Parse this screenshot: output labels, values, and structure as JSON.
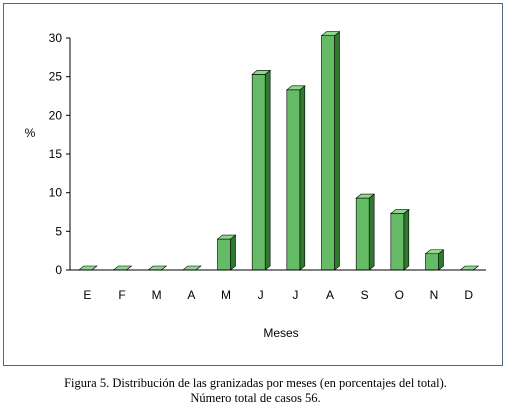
{
  "chart_data": {
    "type": "bar",
    "categories": [
      "E",
      "F",
      "M",
      "A",
      "M",
      "J",
      "J",
      "A",
      "S",
      "O",
      "N",
      "D"
    ],
    "values": [
      0,
      0,
      0,
      0,
      4,
      25.3,
      23.3,
      30.3,
      9.3,
      7.3,
      2.1,
      0
    ],
    "xlabel": "Meses",
    "ylabel": "%",
    "ylim": [
      0,
      30
    ],
    "yticks": [
      "0",
      "5",
      "10",
      "15",
      "20",
      "25",
      "30"
    ],
    "grid": false,
    "bar_color": "#66bb66",
    "bar_side_color": "#2f7a2f",
    "bar_top_color": "#8fd68f",
    "style": "3d-bar"
  },
  "caption": {
    "line1": "Figura 5. Distribución de las granizadas por meses (en porcentajes del total).",
    "line2": "Número total de casos 56."
  }
}
